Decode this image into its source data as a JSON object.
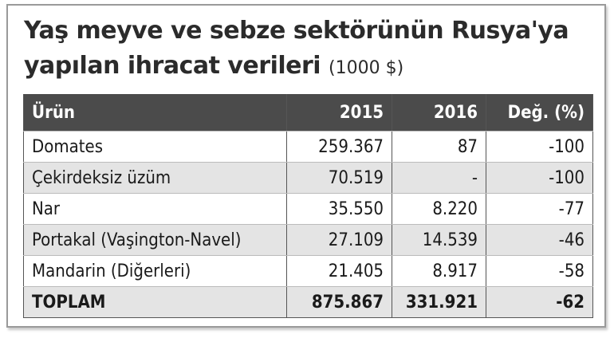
{
  "header": {
    "title": "Yaş meyve ve sebze sektörünün Rusya'ya",
    "title_line2": "yapılan ihracat verileri",
    "unit": "(1000 $)"
  },
  "table": {
    "columns": [
      "Ürün",
      "2015",
      "2016",
      "Değ. (%)"
    ],
    "rows": [
      [
        "Domates",
        "259.367",
        "87",
        "-100"
      ],
      [
        "Çekirdeksiz üzüm",
        "70.519",
        "-",
        "-100"
      ],
      [
        "Nar",
        "35.550",
        "8.220",
        "-77"
      ],
      [
        "Portakal (Vaşington-Navel)",
        "27.109",
        "14.539",
        "-46"
      ],
      [
        "Mandarin (Diğerleri)",
        "21.405",
        "8.917",
        "-58"
      ],
      [
        "TOPLAM",
        "875.867",
        "331.921",
        "-62"
      ]
    ]
  }
}
